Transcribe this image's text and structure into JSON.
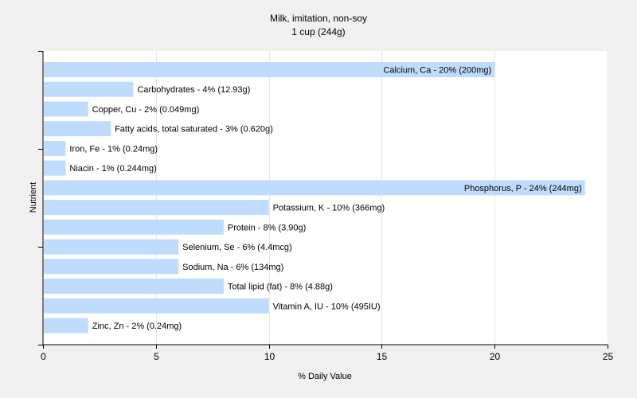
{
  "chart_data": {
    "type": "bar",
    "orientation": "horizontal",
    "title": "Milk, imitation, non-soy",
    "subtitle": "1 cup (244g)",
    "xlabel": "% Daily Value",
    "ylabel": "Nutrient",
    "xlim": [
      0,
      25
    ],
    "xticks": [
      0,
      5,
      10,
      15,
      20,
      25
    ],
    "grid": "vertical",
    "bar_color": "#bfdcff",
    "categories": [
      "Calcium, Ca",
      "Carbohydrates",
      "Copper, Cu",
      "Fatty acids, total saturated",
      "Iron, Fe",
      "Niacin",
      "Phosphorus, P",
      "Potassium, K",
      "Protein",
      "Selenium, Se",
      "Sodium, Na",
      "Total lipid (fat)",
      "Vitamin A, IU",
      "Zinc, Zn"
    ],
    "values": [
      20,
      4,
      2,
      3,
      1,
      1,
      24,
      10,
      8,
      6,
      6,
      8,
      10,
      2
    ],
    "labels": [
      "Calcium, Ca - 20% (200mg)",
      "Carbohydrates - 4% (12.93g)",
      "Copper, Cu - 2% (0.049mg)",
      "Fatty acids, total saturated - 3% (0.620g)",
      "Iron, Fe - 1% (0.24mg)",
      "Niacin - 1% (0.244mg)",
      "Phosphorus, P - 24% (244mg)",
      "Potassium, K - 10% (366mg)",
      "Protein - 8% (3.90g)",
      "Selenium, Se - 6% (4.4mcg)",
      "Sodium, Na - 6% (134mg)",
      "Total lipid (fat) - 8% (4.88g)",
      "Vitamin A, IU - 10% (495IU)",
      "Zinc, Zn - 2% (0.24mg)"
    ]
  }
}
